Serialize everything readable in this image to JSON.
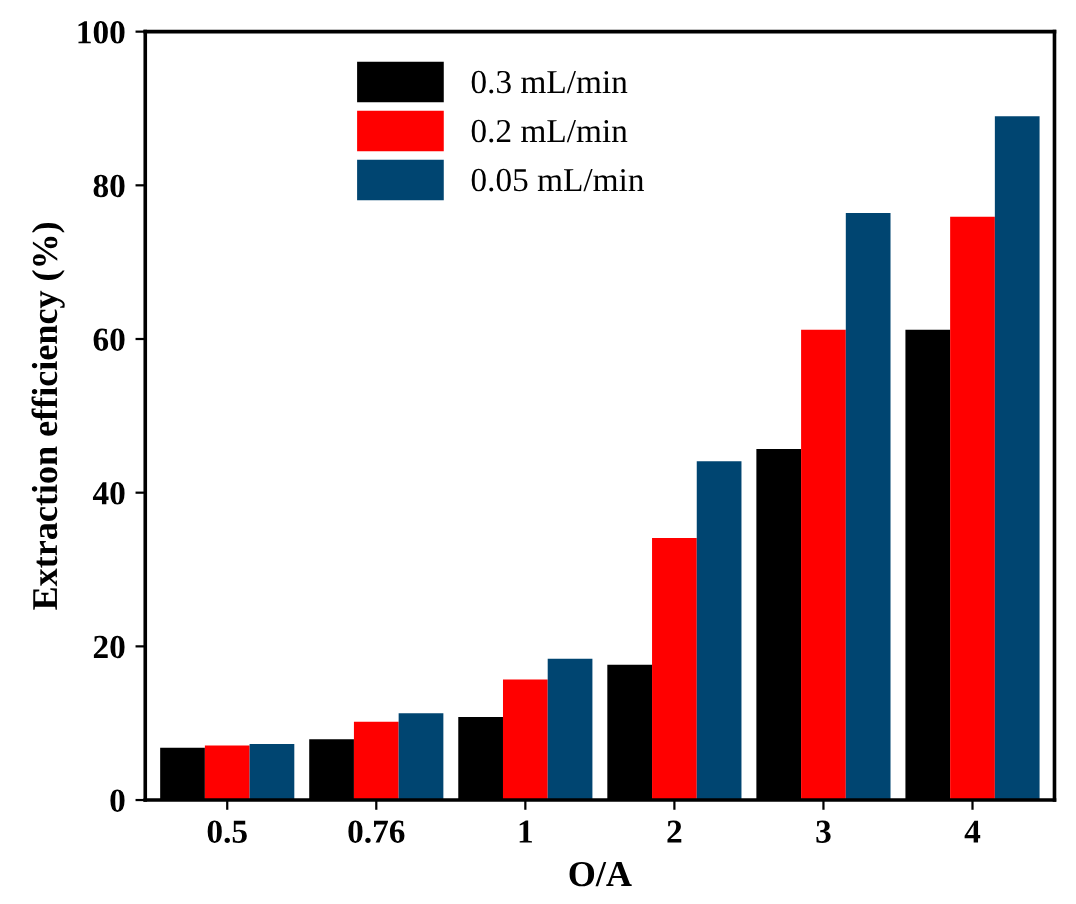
{
  "chart_data": {
    "type": "bar",
    "xlabel": "O/A",
    "ylabel": "Extraction efficiency (%)",
    "categories": [
      "0.5",
      "0.76",
      "1",
      "2",
      "3",
      "4"
    ],
    "series": [
      {
        "name": "0.3 mL/min",
        "color": "#000000",
        "values": [
          6.8,
          7.9,
          10.8,
          17.6,
          45.7,
          61.2
        ]
      },
      {
        "name": "0.2 mL/min",
        "color": "#ff0000",
        "values": [
          7.1,
          10.2,
          15.7,
          34.1,
          61.2,
          75.9
        ]
      },
      {
        "name": "0.05 mL/min",
        "color": "#004571",
        "values": [
          7.3,
          11.3,
          18.4,
          44.1,
          76.4,
          89.0
        ]
      }
    ],
    "ylim": [
      0,
      100
    ],
    "yticks": [
      0,
      20,
      40,
      60,
      80,
      100
    ],
    "grid": false,
    "legend": "top left"
  }
}
